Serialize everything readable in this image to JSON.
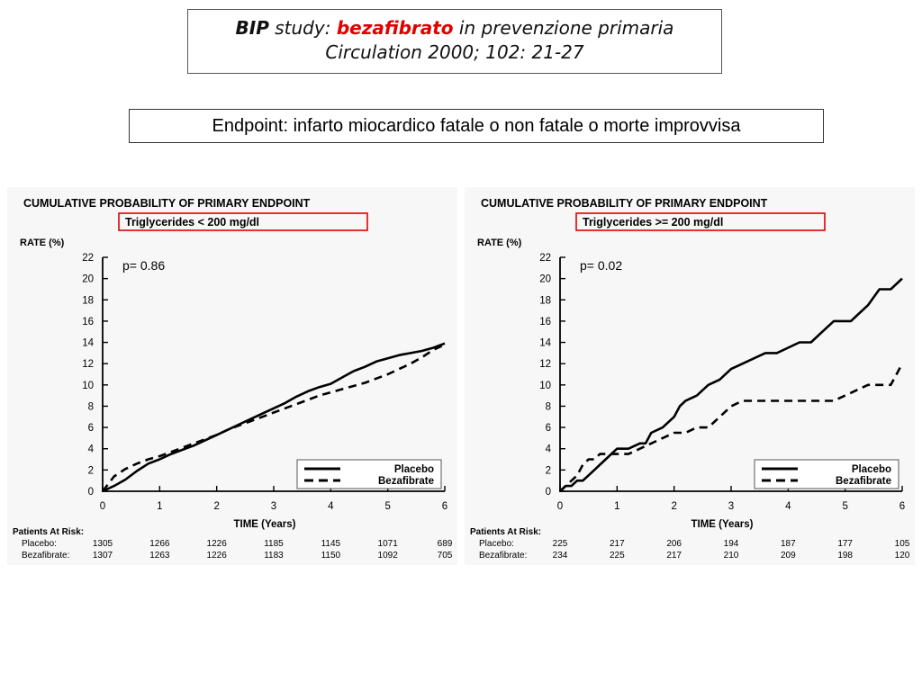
{
  "header": {
    "title_bold": "BIP",
    "title_study": " study: ",
    "title_drug": "bezafibrato",
    "title_rest": " in prevenzione primaria",
    "citation": "Circulation 2000; 102: 21-27"
  },
  "endpoint": "Endpoint: infarto miocardico fatale o non fatale o morte improvvisa",
  "chart_data": [
    {
      "type": "line",
      "title": "CUMULATIVE PROBABILITY OF PRIMARY ENDPOINT",
      "subtitle": "Triglycerides  <  200 mg/dl",
      "highlight_color": "#e00000",
      "ylabel": "RATE (%)",
      "xlabel": "TIME (Years)",
      "xlim": [
        0,
        6
      ],
      "ylim": [
        0,
        22
      ],
      "xticks": [
        0,
        1,
        2,
        3,
        4,
        5,
        6
      ],
      "yticks": [
        0,
        2,
        4,
        6,
        8,
        10,
        12,
        14,
        16,
        18,
        20,
        22
      ],
      "pvalue": "p= 0.86",
      "legend_position": "bottom-right",
      "series": [
        {
          "name": "Placebo",
          "style": "solid",
          "x": [
            0,
            0.2,
            0.4,
            0.6,
            0.8,
            1.0,
            1.2,
            1.4,
            1.6,
            1.8,
            2.0,
            2.2,
            2.4,
            2.6,
            2.8,
            3.0,
            3.2,
            3.4,
            3.6,
            3.8,
            4.0,
            4.2,
            4.4,
            4.6,
            4.8,
            5.0,
            5.2,
            5.4,
            5.6,
            5.8,
            6.0
          ],
          "y": [
            0,
            0.5,
            1.1,
            1.9,
            2.6,
            3.0,
            3.5,
            3.9,
            4.3,
            4.8,
            5.3,
            5.8,
            6.3,
            6.8,
            7.3,
            7.8,
            8.3,
            8.9,
            9.4,
            9.8,
            10.1,
            10.7,
            11.3,
            11.7,
            12.2,
            12.5,
            12.8,
            13.0,
            13.2,
            13.5,
            13.9
          ]
        },
        {
          "name": "Bezafibrate",
          "style": "dashed",
          "x": [
            0,
            0.2,
            0.4,
            0.6,
            0.8,
            1.0,
            1.2,
            1.4,
            1.6,
            1.8,
            2.0,
            2.2,
            2.4,
            2.6,
            2.8,
            3.0,
            3.2,
            3.4,
            3.6,
            3.8,
            4.0,
            4.2,
            4.4,
            4.6,
            4.8,
            5.0,
            5.2,
            5.4,
            5.6,
            5.8,
            6.0
          ],
          "y": [
            0,
            1.4,
            2.1,
            2.6,
            3.0,
            3.3,
            3.7,
            4.1,
            4.5,
            4.9,
            5.3,
            5.8,
            6.2,
            6.6,
            7.0,
            7.4,
            7.8,
            8.2,
            8.6,
            9.0,
            9.3,
            9.6,
            9.9,
            10.2,
            10.6,
            11.0,
            11.5,
            12.0,
            12.6,
            13.3,
            13.8
          ]
        }
      ],
      "at_risk": {
        "label": "Patients At Risk:",
        "rows": [
          {
            "name": "Placebo:",
            "values": [
              "1305",
              "1266",
              "1226",
              "1185",
              "1145",
              "1071",
              "689"
            ]
          },
          {
            "name": "Bezafibrate:",
            "values": [
              "1307",
              "1263",
              "1226",
              "1183",
              "1150",
              "1092",
              "705"
            ]
          }
        ]
      }
    },
    {
      "type": "line",
      "title": "CUMULATIVE PROBABILITY OF PRIMARY ENDPOINT",
      "subtitle": "Triglycerides  >=  200 mg/dl",
      "highlight_color": "#e00000",
      "ylabel": "RATE (%)",
      "xlabel": "TIME (Years)",
      "xlim": [
        0,
        6
      ],
      "ylim": [
        0,
        22
      ],
      "xticks": [
        0,
        1,
        2,
        3,
        4,
        5,
        6
      ],
      "yticks": [
        0,
        2,
        4,
        6,
        8,
        10,
        12,
        14,
        16,
        18,
        20,
        22
      ],
      "pvalue": "p= 0.02",
      "legend_position": "bottom-right",
      "series": [
        {
          "name": "Placebo",
          "style": "solid",
          "x": [
            0,
            0.1,
            0.2,
            0.3,
            0.4,
            0.5,
            0.6,
            0.7,
            0.8,
            0.9,
            1.0,
            1.2,
            1.4,
            1.5,
            1.6,
            1.8,
            1.9,
            2.0,
            2.1,
            2.2,
            2.4,
            2.5,
            2.6,
            2.8,
            3.0,
            3.2,
            3.4,
            3.6,
            3.8,
            4.0,
            4.2,
            4.4,
            4.6,
            4.8,
            5.0,
            5.1,
            5.2,
            5.3,
            5.4,
            5.6,
            5.8,
            6.0
          ],
          "y": [
            0,
            0.5,
            0.5,
            1.0,
            1.0,
            1.5,
            2.0,
            2.5,
            3.0,
            3.5,
            4.0,
            4.0,
            4.5,
            4.5,
            5.5,
            6.0,
            6.5,
            7.0,
            8.0,
            8.5,
            9.0,
            9.5,
            10.0,
            10.5,
            11.5,
            12.0,
            12.5,
            13.0,
            13.0,
            13.5,
            14.0,
            14.0,
            15.0,
            16.0,
            16.0,
            16.0,
            16.5,
            17.0,
            17.5,
            19.0,
            19.0,
            20.0
          ]
        },
        {
          "name": "Bezafibrate",
          "style": "dashed",
          "x": [
            0,
            0.1,
            0.2,
            0.3,
            0.4,
            0.5,
            0.6,
            0.7,
            0.8,
            1.0,
            1.2,
            1.4,
            1.6,
            1.8,
            2.0,
            2.2,
            2.4,
            2.6,
            2.8,
            2.9,
            3.0,
            3.2,
            3.4,
            3.6,
            3.8,
            4.0,
            4.2,
            4.4,
            4.6,
            4.8,
            5.0,
            5.2,
            5.4,
            5.6,
            5.8,
            5.9,
            6.0
          ],
          "y": [
            0,
            0.5,
            1.0,
            1.5,
            2.5,
            3.0,
            3.0,
            3.5,
            3.5,
            3.5,
            3.5,
            4.0,
            4.5,
            5.0,
            5.5,
            5.5,
            6.0,
            6.0,
            7.0,
            7.5,
            8.0,
            8.5,
            8.5,
            8.5,
            8.5,
            8.5,
            8.5,
            8.5,
            8.5,
            8.5,
            9.0,
            9.5,
            10.0,
            10.0,
            10.0,
            11.0,
            12.0
          ]
        }
      ],
      "at_risk": {
        "label": "Patients At Risk:",
        "rows": [
          {
            "name": "Placebo:",
            "values": [
              "225",
              "217",
              "206",
              "194",
              "187",
              "177",
              "105"
            ]
          },
          {
            "name": "Bezafibrate:",
            "values": [
              "234",
              "225",
              "217",
              "210",
              "209",
              "198",
              "120"
            ]
          }
        ]
      }
    }
  ]
}
